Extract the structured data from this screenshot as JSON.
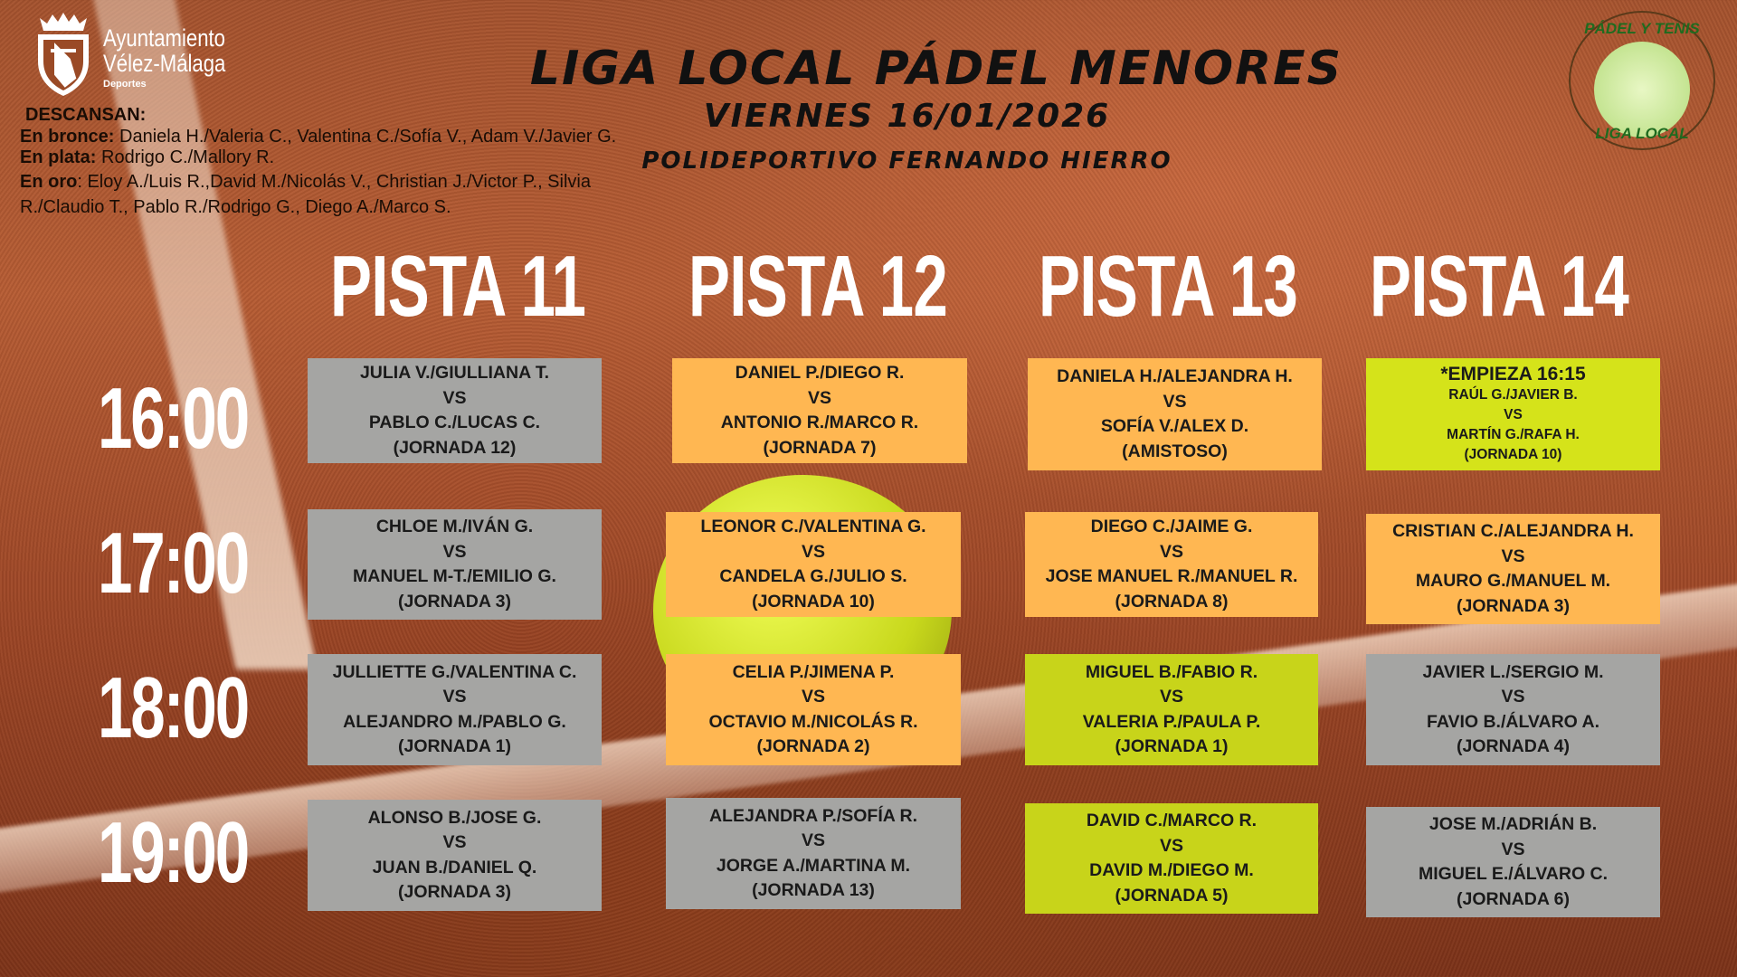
{
  "logo_left": {
    "line1": "Ayuntamiento",
    "line2": "Vélez-Málaga",
    "line3": "Deportes"
  },
  "logo_right": {
    "top": "PÁDEL Y TENIS",
    "bottom": "LIGA LOCAL"
  },
  "title": "LIGA LOCAL PÁDEL MENORES",
  "date": "VIERNES 16/01/2026",
  "venue": "POLIDEPORTIVO FERNANDO HIERRO",
  "descansan": {
    "heading": "DESCANSAN:",
    "groups": [
      {
        "label": "En bronce:",
        "text": " Daniela H./Valeria C., Valentina C./Sofía V., Adam V./Javier G."
      },
      {
        "label": "En plata:",
        "text": " Rodrigo C./Mallory R."
      },
      {
        "label": "En oro",
        "text": ": Eloy A./Luis R.,David M./Nicolás V., Christian J./Victor P., Silvia R./Claudio T., Pablo R./Rodrigo G., Diego A./Marco S."
      }
    ]
  },
  "courts": [
    "PISTA 11",
    "PISTA 12",
    "PISTA 13",
    "PISTA 14"
  ],
  "times": [
    "16:00",
    "17:00",
    "18:00",
    "19:00"
  ],
  "colors": {
    "gray": "#a5a5a3",
    "orange": "#ffb752",
    "lime": "#c8d41a"
  },
  "matches": [
    [
      {
        "team1": "JULIA V./GIULLIANA T.",
        "vs": "VS",
        "team2": "PABLO C./LUCAS C.",
        "round": "(JORNADA 12)",
        "color": "gray"
      },
      {
        "team1": "DANIEL P./DIEGO R.",
        "vs": "VS",
        "team2": "ANTONIO R./MARCO R.",
        "round": "(JORNADA 7)",
        "color": "orange"
      },
      {
        "team1": "DANIELA H./ALEJANDRA H.",
        "vs": "VS",
        "team2": "SOFÍA V./ALEX D.",
        "round": "(AMISTOSO)",
        "color": "orange"
      },
      {
        "note": "*EMPIEZA 16:15",
        "team1": "RAÚL G./JAVIER B.",
        "vs": "VS",
        "team2": "MARTÍN G./RAFA H.",
        "round": "(JORNADA 10)",
        "color": "lime"
      }
    ],
    [
      {
        "team1": "CHLOE M./IVÁN G.",
        "vs": "VS",
        "team2": "MANUEL M-T./EMILIO G.",
        "round": "(JORNADA 3)",
        "color": "gray"
      },
      {
        "team1": "LEONOR C./VALENTINA G.",
        "vs": "VS",
        "team2": "CANDELA G./JULIO S.",
        "round": "(JORNADA 10)",
        "color": "orange"
      },
      {
        "team1": "DIEGO C./JAIME G.",
        "vs": "VS",
        "team2": "JOSE MANUEL R./MANUEL R.",
        "round": "(JORNADA 8)",
        "color": "orange"
      },
      {
        "team1": "CRISTIAN C./ALEJANDRA H.",
        "vs": "VS",
        "team2": "MAURO G./MANUEL M.",
        "round": "(JORNADA 3)",
        "color": "orange"
      }
    ],
    [
      {
        "team1": "JULLIETTE G./VALENTINA C.",
        "vs": "VS",
        "team2": "ALEJANDRO M./PABLO G.",
        "round": "(JORNADA 1)",
        "color": "gray"
      },
      {
        "team1": "CELIA P./JIMENA P.",
        "vs": "VS",
        "team2": "OCTAVIO M./NICOLÁS R.",
        "round": "(JORNADA 2)",
        "color": "orange"
      },
      {
        "team1": "MIGUEL B./FABIO R.",
        "vs": "VS",
        "team2": "VALERIA P./PAULA P.",
        "round": "(JORNADA 1)",
        "color": "lime"
      },
      {
        "team1": "JAVIER L./SERGIO M.",
        "vs": "VS",
        "team2": "FAVIO B./ÁLVARO A.",
        "round": "(JORNADA 4)",
        "color": "gray"
      }
    ],
    [
      {
        "team1": "ALONSO B./JOSE G.",
        "vs": "VS",
        "team2": "JUAN B./DANIEL Q.",
        "round": "(JORNADA 3)",
        "color": "gray"
      },
      {
        "team1": "ALEJANDRA P./SOFÍA R.",
        "vs": "VS",
        "team2": "JORGE A./MARTINA M.",
        "round": "(JORNADA 13)",
        "color": "gray"
      },
      {
        "team1": "DAVID C./MARCO R.",
        "vs": "VS",
        "team2": "DAVID M./DIEGO M.",
        "round": "(JORNADA 5)",
        "color": "lime"
      },
      {
        "team1": "JOSE M./ADRIÁN B.",
        "vs": "VS",
        "team2": "MIGUEL E./ÁLVARO C.",
        "round": "(JORNADA 6)",
        "color": "gray"
      }
    ]
  ]
}
